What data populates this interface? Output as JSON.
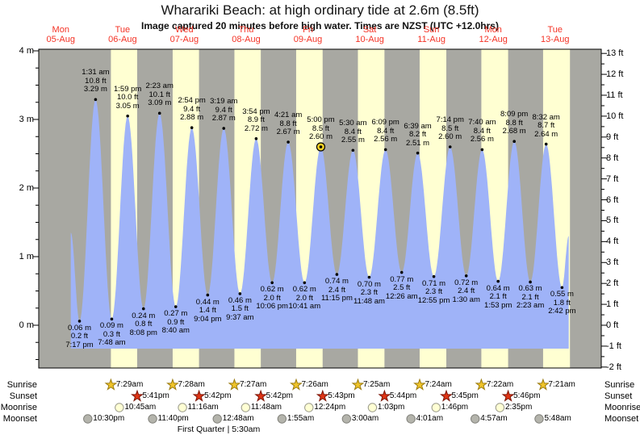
{
  "title": "Wharariki Beach: at high  ordinary tide at 2.6m (8.5ft)",
  "subtitle": "Image captured 20 minutes before high water. Times are NZST (UTC +12.0hrs)",
  "colors": {
    "night_bg": "#a8a8a2",
    "day_bg": "#ffffd2",
    "water": "#9fb3f8",
    "day_label": "#f43326",
    "axis": "#000000",
    "sunrise_star_fill": "#f0c429",
    "sunrise_star_stroke": "#9a7b10",
    "sunset_star_fill": "#e03414",
    "sunset_star_stroke": "#7a1506",
    "moonrise_disc_fill": "#ffffd4",
    "moonrise_disc_stroke": "#9a9a8a",
    "moonset_disc_fill": "#b4b4ac",
    "moonset_disc_stroke": "#80807a",
    "highlight_ring": "#f2d024"
  },
  "days": [
    {
      "weekday": "Mon",
      "date": "05-Aug"
    },
    {
      "weekday": "Tue",
      "date": "06-Aug"
    },
    {
      "weekday": "Wed",
      "date": "07-Aug"
    },
    {
      "weekday": "Thu",
      "date": "08-Aug"
    },
    {
      "weekday": "Fri",
      "date": "09-Aug"
    },
    {
      "weekday": "Sat",
      "date": "10-Aug"
    },
    {
      "weekday": "Sun",
      "date": "11-Aug"
    },
    {
      "weekday": "Mon",
      "date": "12-Aug"
    },
    {
      "weekday": "Tue",
      "date": "13-Aug"
    }
  ],
  "y_axis_left": {
    "unit": "m",
    "ticks": [
      {
        "value": 4,
        "label": "4 m"
      },
      {
        "value": 3,
        "label": "3 m"
      },
      {
        "value": 2,
        "label": "2 m"
      },
      {
        "value": 1,
        "label": "1 m"
      },
      {
        "value": 0,
        "label": "0 m"
      }
    ]
  },
  "y_axis_right": {
    "unit": "ft",
    "ticks": [
      {
        "value": 13,
        "label": "13 ft"
      },
      {
        "value": 12,
        "label": "12 ft"
      },
      {
        "value": 11,
        "label": "11 ft"
      },
      {
        "value": 10,
        "label": "10 ft"
      },
      {
        "value": 9,
        "label": "9 ft"
      },
      {
        "value": 8,
        "label": "8 ft"
      },
      {
        "value": 7,
        "label": "7 ft"
      },
      {
        "value": 6,
        "label": "6 ft"
      },
      {
        "value": 5,
        "label": "5 ft"
      },
      {
        "value": 4,
        "label": "4 ft"
      },
      {
        "value": 3,
        "label": "3 ft"
      },
      {
        "value": 2,
        "label": "2 ft"
      },
      {
        "value": 1,
        "label": "1 ft"
      },
      {
        "value": 0,
        "label": "0 ft"
      },
      {
        "value": -1,
        "label": "-1 ft"
      },
      {
        "value": -2,
        "label": "-2 ft"
      }
    ]
  },
  "chart_data": {
    "type": "area",
    "title": "Wharariki Beach tide heights, 05-Aug to 13-Aug (NZST)",
    "ylim_m": [
      -0.62,
      4
    ],
    "ylim_ft": [
      -2,
      13
    ],
    "tides": [
      {
        "day": 0,
        "type": "low",
        "time": "7:17 pm",
        "m": "0.06 m",
        "m_val": 0.06,
        "ft": "0.2 ft"
      },
      {
        "day": 1,
        "type": "high",
        "time": "1:31 am",
        "m": "3.29 m",
        "m_val": 3.29,
        "ft": "10.8 ft"
      },
      {
        "day": 1,
        "type": "low",
        "time": "7:48 am",
        "m": "0.09 m",
        "m_val": 0.09,
        "ft": "0.3 ft"
      },
      {
        "day": 1,
        "type": "high",
        "time": "1:59 pm",
        "m": "3.05 m",
        "m_val": 3.05,
        "ft": "10.0 ft"
      },
      {
        "day": 1,
        "type": "low",
        "time": "8:08 pm",
        "m": "0.24 m",
        "m_val": 0.24,
        "ft": "0.8 ft"
      },
      {
        "day": 2,
        "type": "high",
        "time": "2:23 am",
        "m": "3.09 m",
        "m_val": 3.09,
        "ft": "10.1 ft"
      },
      {
        "day": 2,
        "type": "low",
        "time": "8:40 am",
        "m": "0.27 m",
        "m_val": 0.27,
        "ft": "0.9 ft"
      },
      {
        "day": 2,
        "type": "high",
        "time": "2:54 pm",
        "m": "2.88 m",
        "m_val": 2.88,
        "ft": "9.4 ft"
      },
      {
        "day": 2,
        "type": "low",
        "time": "9:04 pm",
        "m": "0.44 m",
        "m_val": 0.44,
        "ft": "1.4 ft"
      },
      {
        "day": 3,
        "type": "high",
        "time": "3:19 am",
        "m": "2.87 m",
        "m_val": 2.87,
        "ft": "9.4 ft"
      },
      {
        "day": 3,
        "type": "low",
        "time": "9:37 am",
        "m": "0.46 m",
        "m_val": 0.46,
        "ft": "1.5 ft"
      },
      {
        "day": 3,
        "type": "high",
        "time": "3:54 pm",
        "m": "2.72 m",
        "m_val": 2.72,
        "ft": "8.9 ft"
      },
      {
        "day": 3,
        "type": "low",
        "time": "10:06 pm",
        "m": "0.62 m",
        "m_val": 0.62,
        "ft": "2.0 ft"
      },
      {
        "day": 4,
        "type": "high",
        "time": "4:21 am",
        "m": "2.67 m",
        "m_val": 2.67,
        "ft": "8.8 ft"
      },
      {
        "day": 4,
        "type": "low",
        "time": "10:41 am",
        "m": "0.62 m",
        "m_val": 0.62,
        "ft": "2.0 ft"
      },
      {
        "day": 4,
        "type": "high",
        "time": "5:00 pm",
        "m": "2.60 m",
        "m_val": 2.6,
        "ft": "8.5 ft",
        "highlight": true
      },
      {
        "day": 4,
        "type": "low",
        "time": "11:15 pm",
        "m": "0.74 m",
        "m_val": 0.74,
        "ft": "2.4 ft"
      },
      {
        "day": 5,
        "type": "high",
        "time": "5:30 am",
        "m": "2.55 m",
        "m_val": 2.55,
        "ft": "8.4 ft"
      },
      {
        "day": 5,
        "type": "low",
        "time": "11:48 am",
        "m": "0.70 m",
        "m_val": 0.7,
        "ft": "2.3 ft"
      },
      {
        "day": 5,
        "type": "high",
        "time": "6:09 pm",
        "m": "2.56 m",
        "m_val": 2.56,
        "ft": "8.4 ft"
      },
      {
        "day": 6,
        "type": "low",
        "time": "12:26 am",
        "m": "0.77 m",
        "m_val": 0.77,
        "ft": "2.5 ft"
      },
      {
        "day": 6,
        "type": "high",
        "time": "6:39 am",
        "m": "2.51 m",
        "m_val": 2.51,
        "ft": "8.2 ft"
      },
      {
        "day": 6,
        "type": "low",
        "time": "12:55 pm",
        "m": "0.71 m",
        "m_val": 0.71,
        "ft": "2.3 ft"
      },
      {
        "day": 6,
        "type": "high",
        "time": "7:14 pm",
        "m": "2.60 m",
        "m_val": 2.6,
        "ft": "8.5 ft"
      },
      {
        "day": 7,
        "type": "low",
        "time": "1:30 am",
        "m": "0.72 m",
        "m_val": 0.72,
        "ft": "2.4 ft"
      },
      {
        "day": 7,
        "type": "high",
        "time": "7:40 am",
        "m": "2.56 m",
        "m_val": 2.56,
        "ft": "8.4 ft"
      },
      {
        "day": 7,
        "type": "low",
        "time": "1:53 pm",
        "m": "0.64 m",
        "m_val": 0.64,
        "ft": "2.1 ft"
      },
      {
        "day": 7,
        "type": "high",
        "time": "8:09 pm",
        "m": "2.68 m",
        "m_val": 2.68,
        "ft": "8.8 ft"
      },
      {
        "day": 8,
        "type": "low",
        "time": "2:23 am",
        "m": "0.63 m",
        "m_val": 0.63,
        "ft": "2.1 ft"
      },
      {
        "day": 8,
        "type": "high",
        "time": "8:32 am",
        "m": "2.64 m",
        "m_val": 2.64,
        "ft": "8.7 ft"
      },
      {
        "day": 8,
        "type": "low",
        "time": "2:42 pm",
        "m": "0.55 m",
        "m_val": 0.55,
        "ft": "1.8 ft"
      }
    ],
    "daylight_bands": [
      {
        "day": 1,
        "start": "7:29 am",
        "end": "5:41 pm"
      },
      {
        "day": 2,
        "start": "7:28 am",
        "end": "5:42 pm"
      },
      {
        "day": 3,
        "start": "7:27 am",
        "end": "5:42 pm"
      },
      {
        "day": 4,
        "start": "7:26 am",
        "end": "5:43 pm"
      },
      {
        "day": 5,
        "start": "7:25 am",
        "end": "5:44 pm"
      },
      {
        "day": 6,
        "start": "7:24 am",
        "end": "5:45 pm"
      },
      {
        "day": 7,
        "start": "7:22 am",
        "end": "5:46 pm"
      },
      {
        "day": 8,
        "start": "7:21 am",
        "end": "5:47 pm"
      }
    ]
  },
  "astro": {
    "rows": [
      {
        "id": "sunrise",
        "label": "Sunrise",
        "icon": "sunrise-star",
        "events": [
          {
            "day": 1,
            "time": "7:29am"
          },
          {
            "day": 2,
            "time": "7:28am"
          },
          {
            "day": 3,
            "time": "7:27am"
          },
          {
            "day": 4,
            "time": "7:26am"
          },
          {
            "day": 5,
            "time": "7:25am"
          },
          {
            "day": 6,
            "time": "7:24am"
          },
          {
            "day": 7,
            "time": "7:22am"
          },
          {
            "day": 8,
            "time": "7:21am"
          }
        ]
      },
      {
        "id": "sunset",
        "label": "Sunset",
        "icon": "sunset-star",
        "events": [
          {
            "day": 1,
            "time": "5:41pm"
          },
          {
            "day": 2,
            "time": "5:42pm"
          },
          {
            "day": 3,
            "time": "5:42pm"
          },
          {
            "day": 4,
            "time": "5:43pm"
          },
          {
            "day": 5,
            "time": "5:44pm"
          },
          {
            "day": 6,
            "time": "5:45pm"
          },
          {
            "day": 7,
            "time": "5:46pm"
          }
        ]
      },
      {
        "id": "moonrise",
        "label": "Moonrise",
        "icon": "moonrise-disc",
        "events": [
          {
            "day": 1,
            "time": "10:45am"
          },
          {
            "day": 2,
            "time": "11:16am"
          },
          {
            "day": 3,
            "time": "11:48am"
          },
          {
            "day": 4,
            "time": "12:24pm"
          },
          {
            "day": 5,
            "time": "1:03pm"
          },
          {
            "day": 6,
            "time": "1:46pm"
          },
          {
            "day": 7,
            "time": "2:35pm"
          }
        ]
      },
      {
        "id": "moonset",
        "label": "Moonset",
        "icon": "moonset-disc",
        "events": [
          {
            "day": 0,
            "time": "10:30pm"
          },
          {
            "day": 1,
            "time": "11:40pm"
          },
          {
            "day": 3,
            "time": "12:48am"
          },
          {
            "day": 4,
            "time": "1:55am"
          },
          {
            "day": 5,
            "time": "3:00am"
          },
          {
            "day": 6,
            "time": "4:01am"
          },
          {
            "day": 7,
            "time": "4:57am"
          },
          {
            "day": 8,
            "time": "5:48am"
          }
        ]
      }
    ],
    "caption": "First Quarter | 5:30am"
  }
}
